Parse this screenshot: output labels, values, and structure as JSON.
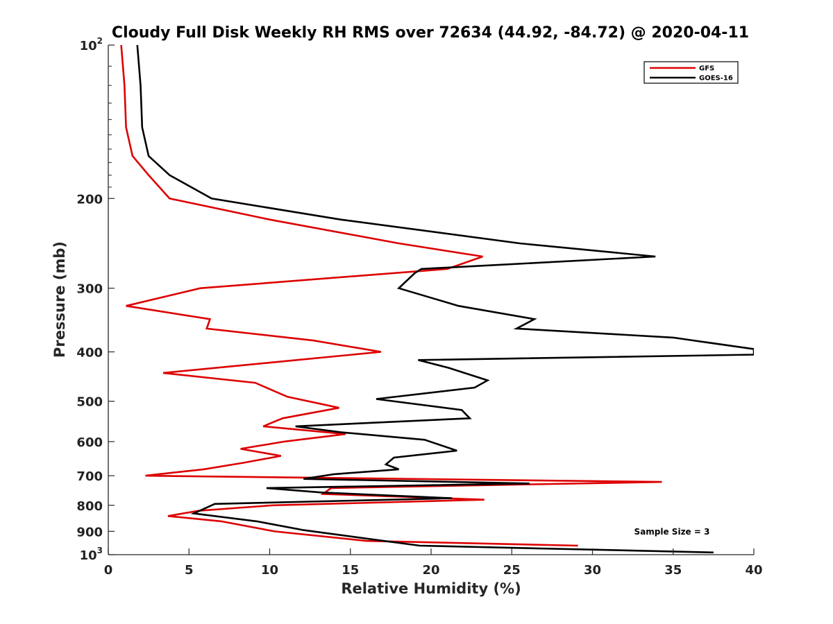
{
  "chart_data": {
    "type": "line",
    "title": "Cloudy Full Disk Weekly RH RMS over 72634 (44.92, -84.72) @ 2020-04-11",
    "xlabel": "Relative Humidity (%)",
    "ylabel": "Pressure (mb)",
    "xlim": [
      0,
      40
    ],
    "ylim": [
      1000,
      100
    ],
    "yscale": "log",
    "x_ticks": [
      0,
      5,
      10,
      15,
      20,
      25,
      30,
      35,
      40
    ],
    "y_ticks": [
      {
        "value": 100,
        "base": "10",
        "exp": "2"
      },
      {
        "value": 200,
        "label": "200"
      },
      {
        "value": 300,
        "label": "300"
      },
      {
        "value": 400,
        "label": "400"
      },
      {
        "value": 500,
        "label": "500"
      },
      {
        "value": 600,
        "label": "600"
      },
      {
        "value": 700,
        "label": "700"
      },
      {
        "value": 800,
        "label": "800"
      },
      {
        "value": 900,
        "label": "900"
      },
      {
        "value": 1000,
        "base": "10",
        "exp": "3"
      }
    ],
    "grid": false,
    "legend_position": "top-right",
    "annotation": "Sample Size = 3",
    "series": [
      {
        "name": "GFS",
        "color": "#dd0000",
        "x": [
          0.8,
          1.0,
          1.1,
          1.5,
          2.5,
          3.8,
          10.0,
          18.0,
          23.2,
          21.0,
          5.7,
          1.1,
          6.3,
          6.1,
          12.7,
          16.9,
          10.0,
          3.4,
          9.1,
          11.1,
          14.3,
          10.8,
          9.6,
          14.7,
          10.9,
          8.2,
          10.7,
          8.4,
          5.9,
          2.3,
          34.3,
          13.8,
          13.3,
          23.3,
          10.2,
          5.6,
          3.7,
          7.0,
          10.3,
          16.0,
          29.1
        ],
        "y": [
          100,
          120,
          145,
          165,
          180,
          200,
          220,
          245,
          260,
          275,
          300,
          325,
          345,
          360,
          380,
          400,
          420,
          440,
          460,
          490,
          515,
          540,
          560,
          580,
          600,
          620,
          640,
          660,
          680,
          700,
          720,
          740,
          760,
          780,
          800,
          820,
          840,
          860,
          900,
          940,
          960
        ]
      },
      {
        "name": "GOES-16",
        "color": "#000000",
        "x": [
          1.8,
          2.0,
          2.1,
          2.5,
          3.8,
          6.4,
          14.4,
          25.5,
          33.9,
          19.4,
          19.0,
          18.0,
          21.7,
          26.4,
          25.3,
          35.0,
          40.0,
          40.0,
          19.2,
          21.1,
          23.5,
          22.7,
          16.6,
          21.9,
          22.4,
          11.6,
          14.4,
          19.6,
          21.6,
          17.7,
          17.2,
          18.0,
          14.0,
          12.1,
          26.1,
          9.8,
          13.2,
          21.3,
          6.6,
          5.3,
          9.2,
          12.1,
          16.0,
          19.3,
          37.5
        ],
        "y": [
          100,
          120,
          145,
          165,
          180,
          200,
          220,
          245,
          260,
          275,
          280,
          300,
          325,
          345,
          360,
          375,
          395,
          405,
          415,
          430,
          455,
          470,
          495,
          520,
          540,
          560,
          575,
          595,
          625,
          645,
          665,
          680,
          695,
          710,
          725,
          740,
          755,
          775,
          795,
          830,
          860,
          895,
          930,
          960,
          990
        ]
      }
    ]
  }
}
